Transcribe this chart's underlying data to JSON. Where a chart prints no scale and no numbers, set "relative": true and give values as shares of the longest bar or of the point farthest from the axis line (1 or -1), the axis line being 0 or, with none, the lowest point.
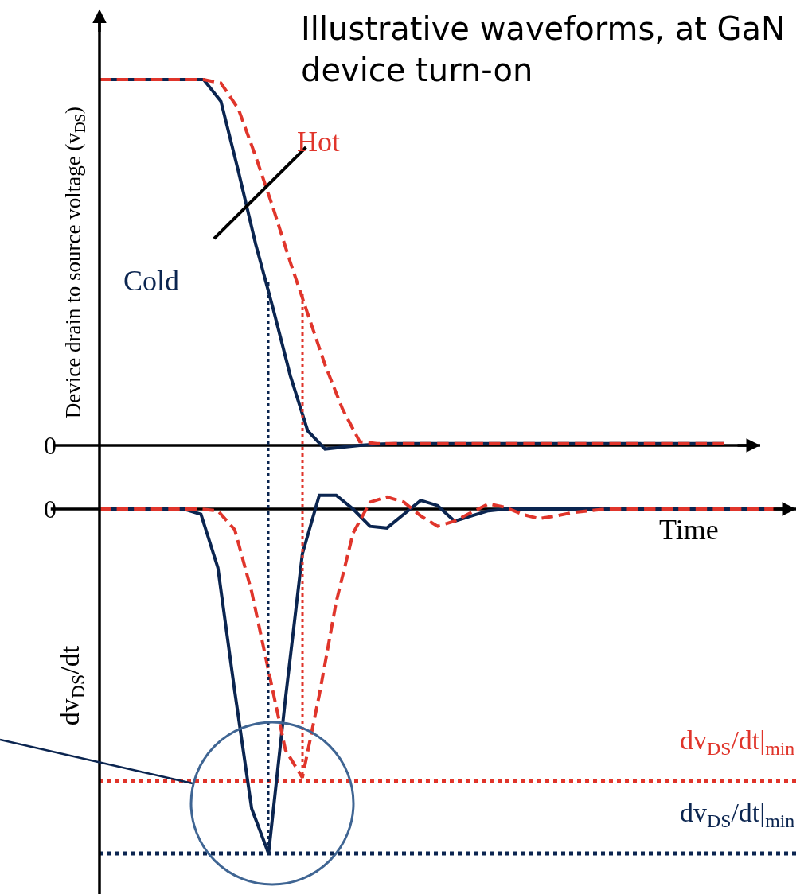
{
  "chart_data": [
    {
      "type": "line",
      "title": "Illustrative waveforms, at GaN device turn-on",
      "ylabel": "Device drain to source voltage (v$_{DS}$)",
      "relative": true,
      "categories": [
        null,
        null,
        null,
        null,
        null,
        null,
        null,
        null,
        null,
        null,
        null,
        null,
        null,
        null,
        null,
        null,
        null,
        null,
        null,
        null,
        null,
        null,
        null,
        null,
        null,
        null,
        null,
        null,
        null,
        null,
        null,
        null,
        null,
        null,
        null,
        null,
        null,
        null,
        null
      ],
      "series": [
        {
          "name": "Cold",
          "color": "#0b2550",
          "line_style": "solid",
          "values": [
            1,
            1,
            1,
            1,
            1,
            1,
            1,
            0.94,
            0.75,
            0.55,
            0.375,
            0.19,
            0.04,
            -0.01,
            -0.005,
            0,
            0.003,
            0.005,
            0.005,
            0.005,
            0.005,
            0.005,
            0.005,
            0.005,
            0.005,
            0.005,
            0.005,
            0.005,
            0.005,
            0.005,
            0.005,
            0.005,
            0.005,
            0.005,
            0.005,
            0.005,
            0.005,
            null,
            null
          ]
        },
        {
          "name": "Hot",
          "color": "#e0352b",
          "line_style": "dashed",
          "values": [
            1,
            1,
            1,
            1,
            1,
            1,
            1,
            0.99,
            0.92,
            0.79,
            0.65,
            0.5,
            0.36,
            0.22,
            0.1,
            0.01,
            0.005,
            0.005,
            0.005,
            0.005,
            0.005,
            0.005,
            0.005,
            0.005,
            0.005,
            0.005,
            0.005,
            0.005,
            0.005,
            0.005,
            0.005,
            0.005,
            0.005,
            0.005,
            0.005,
            0.005,
            0.005,
            null,
            null
          ]
        }
      ],
      "annotations": [
        "0"
      ]
    },
    {
      "type": "line",
      "xlabel": "Time",
      "ylabel": "dv$_{DS}$/dt",
      "relative": true,
      "categories": [
        null,
        null,
        null,
        null,
        null,
        null,
        null,
        null,
        null,
        null,
        null,
        null,
        null,
        null,
        null,
        null,
        null,
        null,
        null,
        null,
        null,
        null,
        null,
        null,
        null,
        null,
        null,
        null,
        null,
        null,
        null,
        null,
        null,
        null,
        null,
        null,
        null,
        null,
        null,
        null,
        null
      ],
      "series": [
        {
          "color": "#0b2550",
          "line_style": "solid",
          "values": [
            0,
            0,
            0,
            0,
            0,
            0,
            -0.015,
            -0.17,
            -0.53,
            -0.87,
            -1,
            -0.55,
            -0.13,
            0.04,
            0.04,
            0,
            -0.05,
            -0.055,
            -0.015,
            0.025,
            0.01,
            -0.035,
            -0.02,
            -0.005,
            0,
            0,
            0,
            0,
            0,
            0,
            0,
            0,
            0,
            0,
            0,
            0,
            0,
            0,
            0,
            0,
            0
          ]
        },
        {
          "color": "#e0352b",
          "line_style": "dashed",
          "values": [
            0,
            0,
            0,
            0,
            0,
            0,
            0,
            -0.005,
            -0.06,
            -0.24,
            -0.47,
            -0.7,
            -0.78,
            -0.54,
            -0.27,
            -0.07,
            0.02,
            0.035,
            0.02,
            -0.02,
            -0.05,
            -0.035,
            -0.01,
            0.015,
            0.005,
            -0.015,
            -0.028,
            -0.02,
            -0.01,
            -0.005,
            0,
            0,
            0,
            0,
            0,
            0,
            0,
            0,
            0,
            0,
            0
          ]
        }
      ],
      "ref_lines": [
        {
          "axis": "y",
          "value": -0.79,
          "color": "#e0352b",
          "line_style": "dotted",
          "label": "dv$_{DS}$/dt|$_{min}$"
        },
        {
          "axis": "y",
          "value": -1,
          "color": "#0b2550",
          "line_style": "dotted",
          "label": "dv$_{DS}$/dt|$_{min}$"
        }
      ],
      "annotations": [
        "0"
      ]
    }
  ]
}
